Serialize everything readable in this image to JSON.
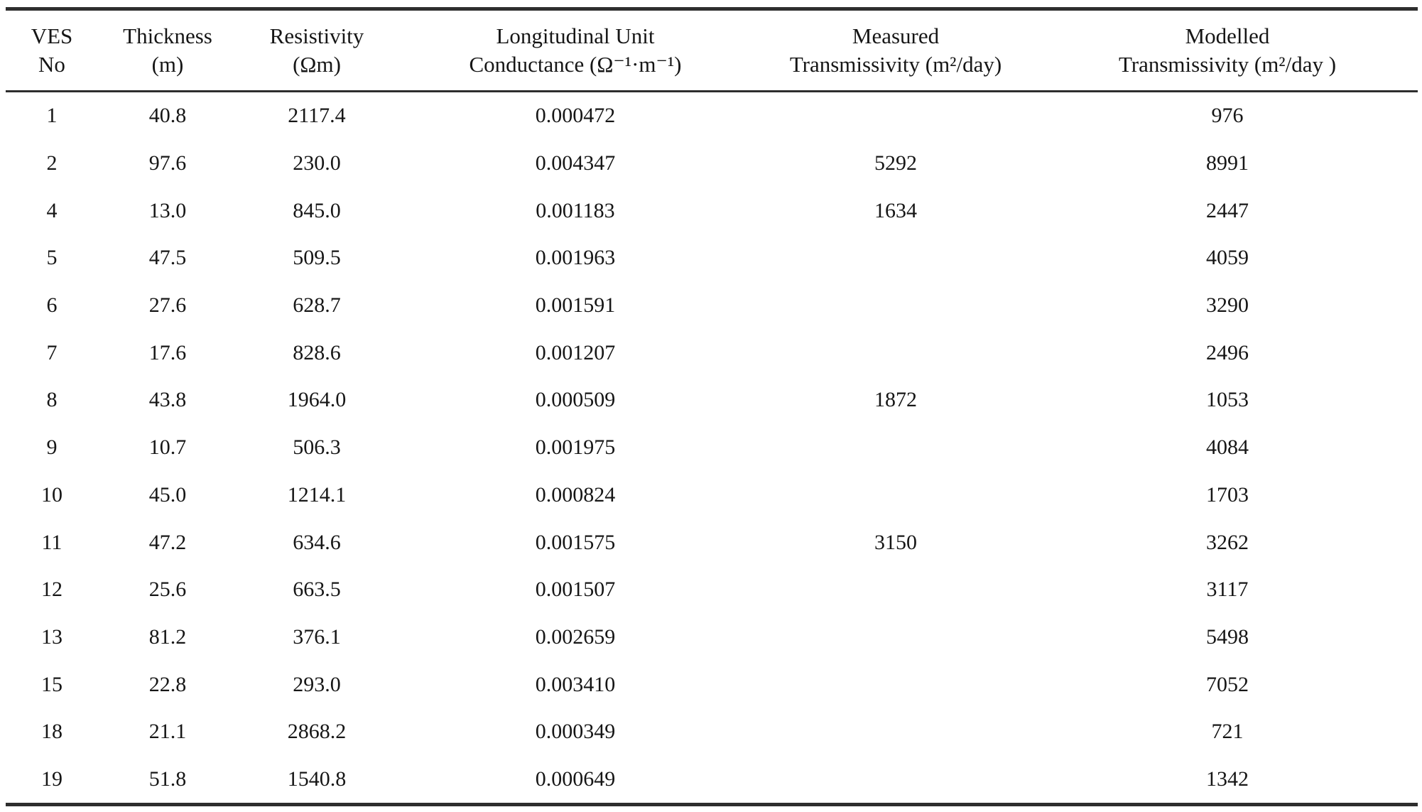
{
  "page": {
    "background": "#ffffff",
    "text_color": "#161616",
    "rule_color": "#2e2e2e"
  },
  "table": {
    "columns": [
      {
        "id": "ves",
        "line1": "VES",
        "line2": "No"
      },
      {
        "id": "thickness",
        "line1": "Thickness",
        "line2": "(m)"
      },
      {
        "id": "resistivity",
        "line1": "Resistivity",
        "line2": "(Ωm)"
      },
      {
        "id": "conductance",
        "line1": "Longitudinal Unit",
        "line2": "Conductance (Ω⁻¹·m⁻¹)"
      },
      {
        "id": "measured",
        "line1": "Measured",
        "line2": "Transmissivity (m²/day)"
      },
      {
        "id": "modelled",
        "line1": "Modelled",
        "line2": "Transmissivity (m²/day )"
      }
    ],
    "rows": [
      {
        "ves": "1",
        "thickness": "40.8",
        "resistivity": "2117.4",
        "conductance": "0.000472",
        "measured": "",
        "modelled": "976"
      },
      {
        "ves": "2",
        "thickness": "97.6",
        "resistivity": "230.0",
        "conductance": "0.004347",
        "measured": "5292",
        "modelled": "8991"
      },
      {
        "ves": "4",
        "thickness": "13.0",
        "resistivity": "845.0",
        "conductance": "0.001183",
        "measured": "1634",
        "modelled": "2447"
      },
      {
        "ves": "5",
        "thickness": "47.5",
        "resistivity": "509.5",
        "conductance": "0.001963",
        "measured": "",
        "modelled": "4059"
      },
      {
        "ves": "6",
        "thickness": "27.6",
        "resistivity": "628.7",
        "conductance": "0.001591",
        "measured": "",
        "modelled": "3290"
      },
      {
        "ves": "7",
        "thickness": "17.6",
        "resistivity": "828.6",
        "conductance": "0.001207",
        "measured": "",
        "modelled": "2496"
      },
      {
        "ves": "8",
        "thickness": "43.8",
        "resistivity": "1964.0",
        "conductance": "0.000509",
        "measured": "1872",
        "modelled": "1053"
      },
      {
        "ves": "9",
        "thickness": "10.7",
        "resistivity": "506.3",
        "conductance": "0.001975",
        "measured": "",
        "modelled": "4084"
      },
      {
        "ves": "10",
        "thickness": "45.0",
        "resistivity": "1214.1",
        "conductance": "0.000824",
        "measured": "",
        "modelled": "1703"
      },
      {
        "ves": "11",
        "thickness": "47.2",
        "resistivity": "634.6",
        "conductance": "0.001575",
        "measured": "3150",
        "modelled": "3262"
      },
      {
        "ves": "12",
        "thickness": "25.6",
        "resistivity": "663.5",
        "conductance": "0.001507",
        "measured": "",
        "modelled": "3117"
      },
      {
        "ves": "13",
        "thickness": "81.2",
        "resistivity": "376.1",
        "conductance": "0.002659",
        "measured": "",
        "modelled": "5498"
      },
      {
        "ves": "15",
        "thickness": "22.8",
        "resistivity": "293.0",
        "conductance": "0.003410",
        "measured": "",
        "modelled": "7052"
      },
      {
        "ves": "18",
        "thickness": "21.1",
        "resistivity": "2868.2",
        "conductance": "0.000349",
        "measured": "",
        "modelled": "721"
      },
      {
        "ves": "19",
        "thickness": "51.8",
        "resistivity": "1540.8",
        "conductance": "0.000649",
        "measured": "",
        "modelled": "1342"
      }
    ]
  }
}
